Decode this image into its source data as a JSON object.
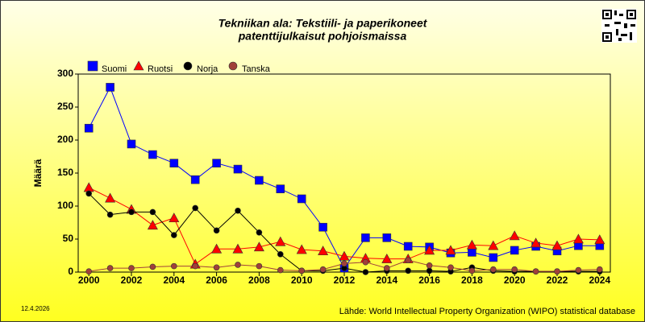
{
  "chart_data": {
    "type": "line",
    "title": "Tekniikan ala: Tekstiili- ja paperikoneet",
    "subtitle": "patenttijulkaisut pohjoismaissa",
    "y_label": "Määrä",
    "date": "12.4.2026",
    "source": "Lähde: World Intellectual Property Organization (WIPO) statistical database",
    "x": [
      2000,
      2001,
      2002,
      2003,
      2004,
      2005,
      2006,
      2007,
      2008,
      2009,
      2010,
      2011,
      2012,
      2013,
      2014,
      2015,
      2016,
      2017,
      2018,
      2019,
      2020,
      2021,
      2022,
      2023,
      2024
    ],
    "xlim": [
      1999.5,
      2024.5
    ],
    "xticks": [
      2000,
      2002,
      2004,
      2006,
      2008,
      2010,
      2012,
      2014,
      2016,
      2018,
      2020,
      2022,
      2024
    ],
    "ylim": [
      0,
      300
    ],
    "yticks": [
      0,
      50,
      100,
      150,
      200,
      250,
      300
    ],
    "grid": false,
    "legend": "top",
    "series": [
      {
        "name": "Suomi",
        "color": "#0000ff",
        "marker": "square",
        "values": [
          218,
          280,
          194,
          178,
          165,
          140,
          165,
          156,
          139,
          126,
          111,
          68,
          6,
          52,
          52,
          39,
          38,
          29,
          30,
          22,
          33,
          39,
          32,
          40,
          40
        ]
      },
      {
        "name": "Ruotsi",
        "color": "#ff0000",
        "marker": "triangle",
        "values": [
          128,
          112,
          95,
          71,
          82,
          12,
          35,
          35,
          38,
          46,
          34,
          32,
          24,
          21,
          20,
          20,
          33,
          33,
          41,
          40,
          55,
          44,
          40,
          50,
          49
        ]
      },
      {
        "name": "Norja",
        "color": "#000000",
        "marker": "circle",
        "values": [
          119,
          87,
          91,
          91,
          56,
          97,
          63,
          93,
          60,
          27,
          2,
          2,
          6,
          0,
          2,
          2,
          2,
          1,
          7,
          2,
          1,
          1,
          1,
          1,
          1
        ]
      },
      {
        "name": "Tanska",
        "color": "#a0403a",
        "marker": "circle",
        "values": [
          1,
          6,
          6,
          8,
          9,
          9,
          7,
          11,
          9,
          3,
          2,
          4,
          13,
          15,
          6,
          18,
          10,
          7,
          2,
          4,
          4,
          1,
          1,
          3,
          4
        ]
      }
    ]
  }
}
